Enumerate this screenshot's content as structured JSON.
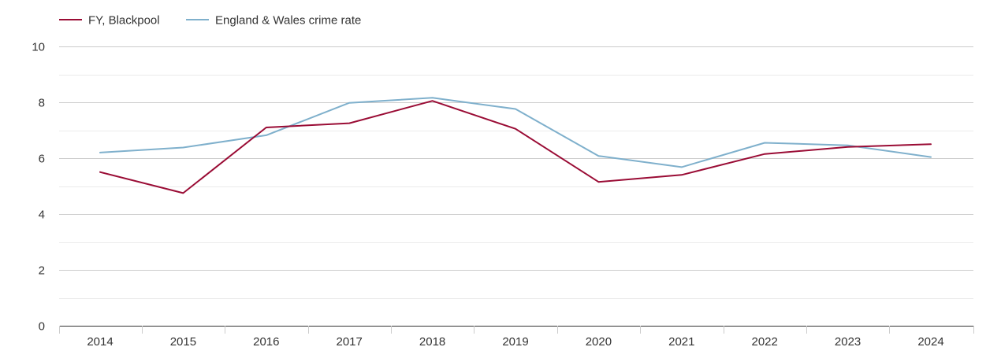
{
  "chart_data": {
    "type": "line",
    "title": "",
    "xlabel": "",
    "ylabel": "",
    "x": [
      "2014",
      "2015",
      "2016",
      "2017",
      "2018",
      "2019",
      "2020",
      "2021",
      "2022",
      "2023",
      "2024"
    ],
    "ylim": [
      0,
      10
    ],
    "yticks": [
      "0",
      "2",
      "4",
      "6",
      "8",
      "10"
    ],
    "grid": true,
    "legend_position": "top-left",
    "series": [
      {
        "name": "FY, Blackpool",
        "color": "#9a0c35",
        "values": [
          5.5,
          4.75,
          7.1,
          7.25,
          8.05,
          7.05,
          5.15,
          5.4,
          6.15,
          6.4,
          6.5
        ]
      },
      {
        "name": "England & Wales crime rate",
        "color": "#7fb0cc",
        "values": [
          6.2,
          6.38,
          6.82,
          7.98,
          8.16,
          7.76,
          6.08,
          5.68,
          6.55,
          6.46,
          6.04
        ]
      }
    ]
  }
}
